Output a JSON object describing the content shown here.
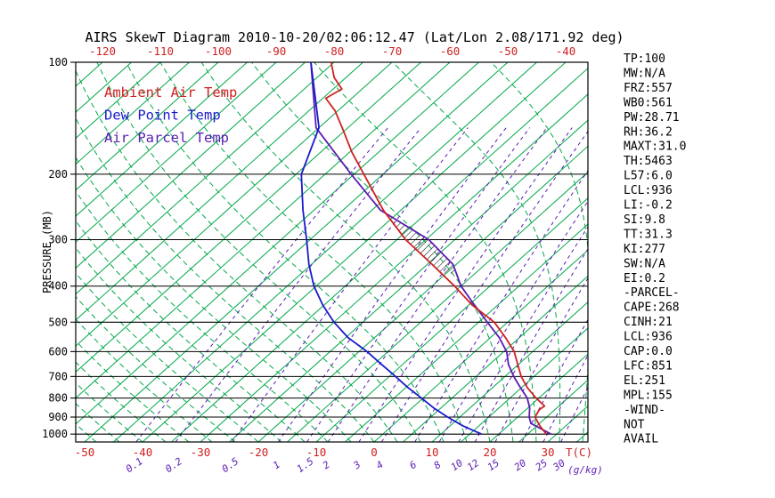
{
  "title": "AIRS SkewT Diagram 2010-10-20/02:06:12.47 (Lat/Lon 2.08/171.92 deg)",
  "colors": {
    "temperature": "#cf2020",
    "dewpoint": "#1a1acd",
    "parcel": "#5a1cb4",
    "isotherm": "#00a84a",
    "moist_adiabat": "#00a84a",
    "mixing_ratio": "#5a1cb4",
    "axis": "#000000"
  },
  "legend": {
    "items": [
      {
        "label": "Ambient Air Temp",
        "color_key": "temperature"
      },
      {
        "label": "Dew Point Temp",
        "color_key": "dewpoint"
      },
      {
        "label": "Air Parcel Temp",
        "color_key": "parcel"
      }
    ]
  },
  "axes": {
    "pressure_axis_label": "PRESSURE (MB)",
    "pressure_ticks": [
      100,
      200,
      300,
      400,
      500,
      600,
      700,
      800,
      900,
      1000
    ],
    "top_temperature_ticks": [
      -120,
      -110,
      -100,
      -90,
      -80,
      -70,
      -60,
      -50,
      -40
    ],
    "bottom_temperature_ticks": [
      -50,
      -40,
      -30,
      -20,
      -10,
      0,
      10,
      20,
      30
    ],
    "temperature_unit_label": "T(C)",
    "mixing_ratio_ticks": [
      0.1,
      0.2,
      0.5,
      1,
      1.5,
      2,
      3,
      4,
      6,
      8,
      10,
      12,
      15,
      20,
      25,
      30
    ],
    "mixing_ratio_unit_label": "(g/kg)"
  },
  "stats_panel": {
    "lines": [
      "TP:100",
      "MW:N/A",
      "FRZ:557",
      "WB0:561",
      "PW:28.71",
      "RH:36.2",
      "MAXT:31.0",
      "TH:5463",
      "L57:6.0",
      "LCL:936",
      "LI:-0.2",
      "SI:9.8",
      "TT:31.3",
      "KI:277",
      "SW:N/A",
      "EI:0.2",
      "-PARCEL-",
      "CAPE:268",
      "CINH:21",
      "LCL:936",
      "CAP:0.0",
      "LFC:851",
      "EL:251",
      "MPL:155",
      "-WIND-",
      "NOT",
      "AVAIL"
    ]
  },
  "chart_data": {
    "type": "line",
    "projection": "skew-t-log-p",
    "title": "AIRS SkewT Diagram 2010-10-20/02:06:12.47 (Lat/Lon 2.08/171.92 deg)",
    "xlabel": "T(C)",
    "ylabel": "PRESSURE (MB)",
    "grid": "on",
    "legend_position": "upper-left",
    "pressure_range_hPa": [
      100,
      1050
    ],
    "isotherms": {
      "min_C": -130,
      "max_C": 40,
      "step_C": 5
    },
    "moist_adiabats": {
      "min_surface_C": -64,
      "max_surface_C": 40,
      "step_C": 4
    },
    "mixing_ratio_top_hPa": 150,
    "cape_hatch_pressure_range_hPa": [
      370,
      265
    ],
    "series": [
      {
        "name": "Ambient Air Temp",
        "color_key": "temperature",
        "units": [
          "hPa",
          "C"
        ],
        "points": [
          [
            1000,
            28.2
          ],
          [
            950,
            25.5
          ],
          [
            900,
            23.0
          ],
          [
            860,
            22.3
          ],
          [
            840,
            22.5
          ],
          [
            800,
            19.5
          ],
          [
            750,
            16.0
          ],
          [
            700,
            12.8
          ],
          [
            650,
            9.9
          ],
          [
            600,
            6.8
          ],
          [
            550,
            2.6
          ],
          [
            500,
            -2.3
          ],
          [
            450,
            -9.4
          ],
          [
            400,
            -16.1
          ],
          [
            350,
            -24.1
          ],
          [
            300,
            -33.5
          ],
          [
            250,
            -43.0
          ],
          [
            200,
            -53.3
          ],
          [
            175,
            -59.5
          ],
          [
            150,
            -66.0
          ],
          [
            135,
            -70.5
          ],
          [
            125,
            -74.5
          ],
          [
            118,
            -73.5
          ],
          [
            110,
            -77.0
          ],
          [
            100,
            -80.5
          ]
        ]
      },
      {
        "name": "Dew Point Temp",
        "color_key": "dewpoint",
        "units": [
          "hPa",
          "C"
        ],
        "points": [
          [
            1000,
            17.0
          ],
          [
            950,
            12.2
          ],
          [
            900,
            7.9
          ],
          [
            850,
            3.7
          ],
          [
            800,
            -0.3
          ],
          [
            750,
            -4.6
          ],
          [
            700,
            -8.9
          ],
          [
            650,
            -13.6
          ],
          [
            600,
            -18.6
          ],
          [
            550,
            -24.6
          ],
          [
            500,
            -30.0
          ],
          [
            450,
            -35.2
          ],
          [
            400,
            -40.4
          ],
          [
            350,
            -45.4
          ],
          [
            300,
            -50.6
          ],
          [
            250,
            -56.9
          ],
          [
            200,
            -64.1
          ],
          [
            150,
            -70.0
          ],
          [
            100,
            -84.0
          ]
        ]
      },
      {
        "name": "Air Parcel Temp",
        "color_key": "parcel",
        "units": [
          "hPa",
          "C"
        ],
        "points": [
          [
            1000,
            29.0
          ],
          [
            936,
            23.5
          ],
          [
            900,
            22.0
          ],
          [
            850,
            20.3
          ],
          [
            800,
            18.0
          ],
          [
            750,
            14.8
          ],
          [
            700,
            11.5
          ],
          [
            650,
            8.3
          ],
          [
            600,
            5.5
          ],
          [
            550,
            1.5
          ],
          [
            500,
            -3.5
          ],
          [
            450,
            -9.0
          ],
          [
            400,
            -15.0
          ],
          [
            350,
            -20.5
          ],
          [
            300,
            -29.5
          ],
          [
            250,
            -43.5
          ],
          [
            200,
            -55.5
          ],
          [
            150,
            -70.5
          ],
          [
            100,
            -84.0
          ]
        ]
      }
    ]
  }
}
